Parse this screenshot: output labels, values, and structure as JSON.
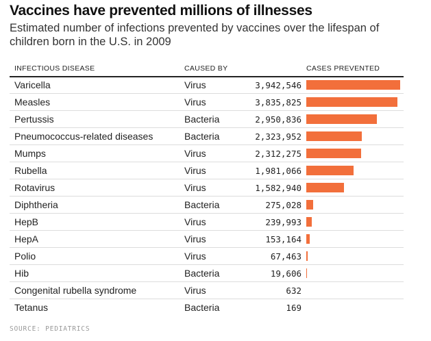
{
  "title": "Vaccines have prevented millions of illnesses",
  "subtitle": "Estimated number of infections prevented by vaccines over the lifespan of children born in the U.S. in 2009",
  "headers": {
    "disease": "INFECTIOUS DISEASE",
    "caused_by": "CAUSED BY",
    "cases": "CASES PREVENTED"
  },
  "source": "SOURCE: PEDIATRICS",
  "colors": {
    "bar": "#f26f3b"
  },
  "chart_data": {
    "type": "bar",
    "orientation": "horizontal",
    "title": "Vaccines have prevented millions of illnesses",
    "subtitle": "Estimated number of infections prevented by vaccines over the lifespan of children born in the U.S. in 2009",
    "categories": [
      "Varicella",
      "Measles",
      "Pertussis",
      "Pneumococcus-related diseases",
      "Mumps",
      "Rubella",
      "Rotavirus",
      "Diphtheria",
      "HepB",
      "HepA",
      "Polio",
      "Hib",
      "Congenital rubella syndrome",
      "Tetanus"
    ],
    "caused_by": [
      "Virus",
      "Virus",
      "Bacteria",
      "Bacteria",
      "Virus",
      "Virus",
      "Virus",
      "Bacteria",
      "Virus",
      "Virus",
      "Virus",
      "Bacteria",
      "Virus",
      "Bacteria"
    ],
    "values": [
      3942546,
      3835825,
      2950836,
      2323952,
      2312275,
      1981066,
      1582940,
      275028,
      239993,
      153164,
      67463,
      19606,
      632,
      169
    ],
    "labels": [
      "3,942,546",
      "3,835,825",
      "2,950,836",
      "2,323,952",
      "2,312,275",
      "1,981,066",
      "1,582,940",
      "275,028",
      "239,993",
      "153,164",
      "67,463",
      "19,606",
      "632",
      "169"
    ],
    "xlim": [
      0,
      4000000
    ],
    "grid": false,
    "legend": "none"
  }
}
